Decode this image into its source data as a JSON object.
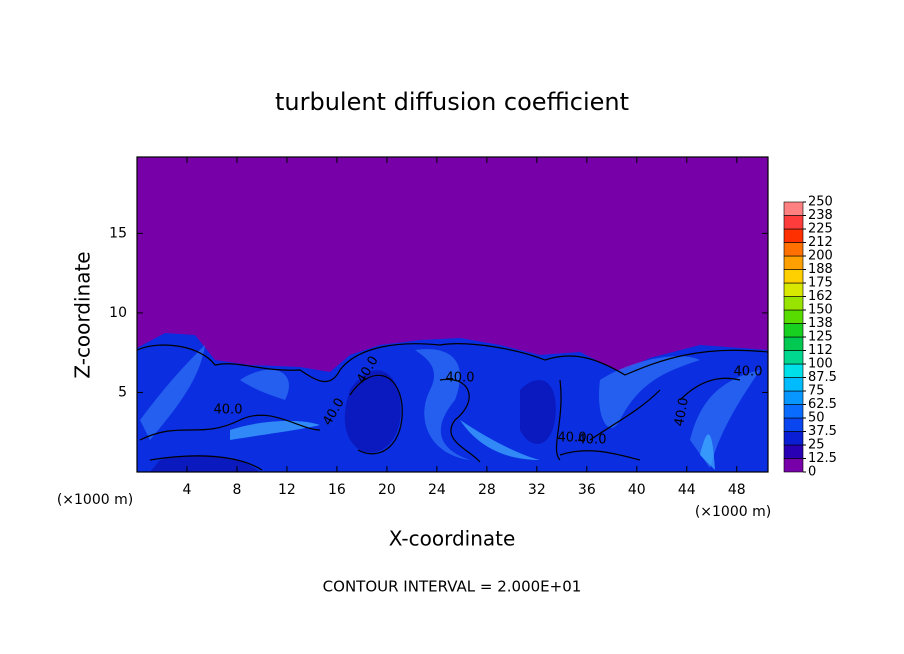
{
  "chart_data": {
    "type": "contour",
    "title": "turbulent diffusion coefficient",
    "xlabel": "X-coordinate",
    "ylabel": "Z-coordinate",
    "xunit": "(×1000 m)",
    "yunit": "(×1000 m)",
    "footnote": "CONTOUR INTERVAL = 2.000E+01",
    "xlim": [
      0,
      50.5
    ],
    "xticks": [
      4,
      8,
      12,
      16,
      20,
      24,
      28,
      32,
      36,
      40,
      44,
      48
    ],
    "ylim": [
      0,
      19.8
    ],
    "yticks": [
      5,
      10,
      15
    ],
    "contour_labels": [
      "40.0",
      "40.0",
      "40.0",
      "40.0",
      "40.0",
      "40.0",
      "40.0",
      "40.0"
    ],
    "colorbar": {
      "lim": [
        0,
        250
      ],
      "ticks": [
        0,
        12.5,
        25,
        37.5,
        50,
        62.5,
        75,
        87.5,
        100,
        {
          "value": 112.5,
          "label": "112"
        },
        125,
        {
          "value": 137.5,
          "label": "138"
        },
        150,
        {
          "value": 162.5,
          "label": "162"
        },
        175,
        {
          "value": 187.5,
          "label": "188"
        },
        200,
        {
          "value": 212.5,
          "label": "212"
        },
        225,
        {
          "value": 237.5,
          "label": "238"
        },
        250
      ],
      "colors": [
        "#7800a8",
        "#2a00b4",
        "#0a1ed4",
        "#0a46f0",
        "#0a6cff",
        "#0896ff",
        "#00bcff",
        "#00e0e8",
        "#00d890",
        "#00c850",
        "#18d020",
        "#58dc00",
        "#98e400",
        "#d8e800",
        "#ffd000",
        "#ffa000",
        "#ff7000",
        "#ff3000",
        "#ff3c3c",
        "#ff8080"
      ]
    }
  }
}
